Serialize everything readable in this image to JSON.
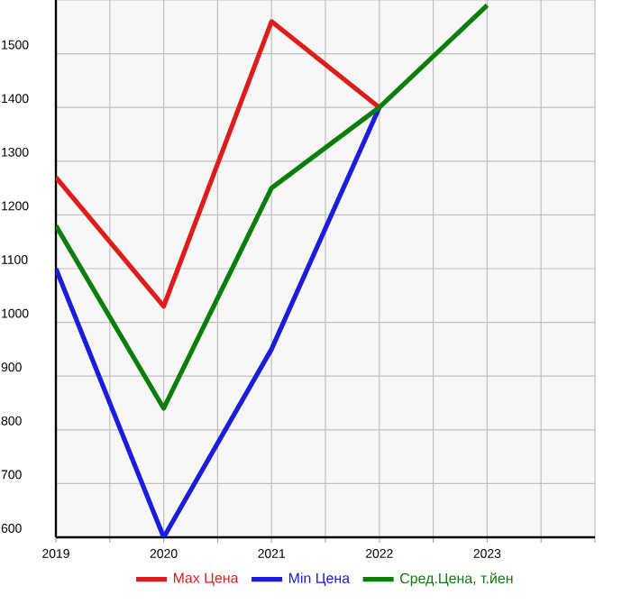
{
  "chart_data": {
    "type": "line",
    "x": [
      2019,
      2020,
      2021,
      2022,
      2023
    ],
    "series": [
      {
        "name": "Max Цена",
        "color": "#dd1c1c",
        "values": [
          1270,
          1030,
          1560,
          1400,
          null
        ]
      },
      {
        "name": "Min Цена",
        "color": "#1c1cdd",
        "values": [
          1100,
          600,
          950,
          1400,
          null
        ]
      },
      {
        "name": "Сред.Цена, т.йен",
        "color": "#0a7d0a",
        "values": [
          1180,
          840,
          1250,
          1400,
          1590
        ]
      }
    ],
    "xlim": [
      2019,
      2024
    ],
    "xticks": [
      2019,
      {
        "value": 2019.5,
        "label": null
      },
      2020,
      {
        "value": 2020.5,
        "label": null
      },
      2021,
      {
        "value": 2021.5,
        "label": null
      },
      2022,
      {
        "value": 2022.5,
        "label": null
      },
      2023,
      {
        "value": 2023.5,
        "label": null
      },
      {
        "value": 2024,
        "label": null
      }
    ],
    "ylim": [
      600,
      1600
    ],
    "yticks": [
      600,
      700,
      800,
      900,
      1000,
      1100,
      1200,
      1300,
      1400,
      1500,
      {
        "value": 1600,
        "label": null
      }
    ],
    "grid": true,
    "legend": "bottom",
    "marker": "none",
    "line_style": "solid"
  }
}
